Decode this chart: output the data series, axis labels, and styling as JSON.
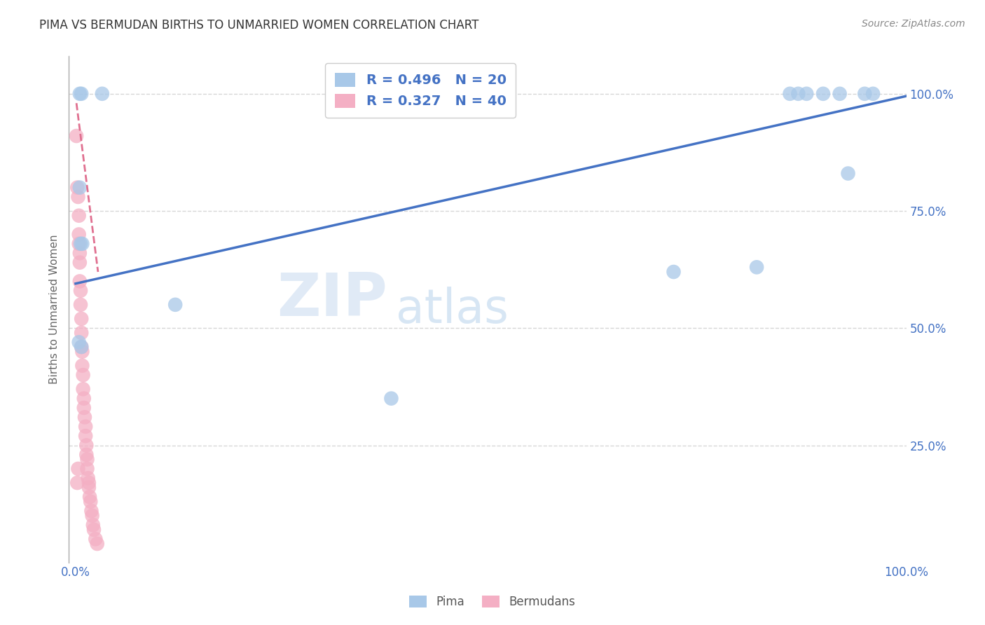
{
  "title": "PIMA VS BERMUDAN BIRTHS TO UNMARRIED WOMEN CORRELATION CHART",
  "source": "Source: ZipAtlas.com",
  "ylabel": "Births to Unmarried Women",
  "ytick_labels": [
    "25.0%",
    "50.0%",
    "75.0%",
    "100.0%"
  ],
  "ytick_values": [
    0.25,
    0.5,
    0.75,
    1.0
  ],
  "xtick_labels": [
    "0.0%",
    "100.0%"
  ],
  "xtick_values": [
    0.0,
    1.0
  ],
  "watermark_zip": "ZIP",
  "watermark_atlas": "atlas",
  "pima_R": 0.496,
  "pima_N": 20,
  "bermuda_R": 0.327,
  "bermuda_N": 40,
  "pima_color": "#a8c8e8",
  "bermuda_color": "#f4afc4",
  "pima_line_color": "#4472c4",
  "bermuda_line_color": "#e07090",
  "legend_text_color": "#4472c4",
  "title_color": "#333333",
  "axis_color": "#4472c4",
  "grid_color": "#cccccc",
  "background_color": "#ffffff",
  "pima_scatter_x": [
    0.005,
    0.007,
    0.032,
    0.005,
    0.006,
    0.008,
    0.004,
    0.007,
    0.12,
    0.38,
    0.72,
    0.82,
    0.86,
    0.88,
    0.9,
    0.93,
    0.95,
    0.87,
    0.92,
    0.96
  ],
  "pima_scatter_y": [
    1.0,
    1.0,
    1.0,
    0.8,
    0.68,
    0.68,
    0.47,
    0.46,
    0.55,
    0.35,
    0.62,
    0.63,
    1.0,
    1.0,
    1.0,
    0.83,
    1.0,
    1.0,
    1.0,
    1.0
  ],
  "bermuda_scatter_x": [
    0.001,
    0.002,
    0.002,
    0.003,
    0.003,
    0.004,
    0.004,
    0.004,
    0.005,
    0.005,
    0.005,
    0.006,
    0.006,
    0.007,
    0.007,
    0.007,
    0.008,
    0.008,
    0.009,
    0.009,
    0.01,
    0.01,
    0.011,
    0.012,
    0.012,
    0.013,
    0.013,
    0.014,
    0.014,
    0.015,
    0.016,
    0.016,
    0.017,
    0.018,
    0.019,
    0.02,
    0.021,
    0.022,
    0.024,
    0.026
  ],
  "bermuda_scatter_y": [
    0.91,
    0.17,
    0.8,
    0.78,
    0.2,
    0.74,
    0.7,
    0.68,
    0.66,
    0.64,
    0.6,
    0.58,
    0.55,
    0.52,
    0.49,
    0.46,
    0.45,
    0.42,
    0.4,
    0.37,
    0.35,
    0.33,
    0.31,
    0.29,
    0.27,
    0.25,
    0.23,
    0.22,
    0.2,
    0.18,
    0.17,
    0.16,
    0.14,
    0.13,
    0.11,
    0.1,
    0.08,
    0.07,
    0.05,
    0.04
  ],
  "pima_line_x0": 0.0,
  "pima_line_y0": 0.595,
  "pima_line_x1": 1.0,
  "pima_line_y1": 0.995,
  "bermuda_line_x0": 0.001,
  "bermuda_line_y0": 0.98,
  "bermuda_line_x1": 0.027,
  "bermuda_line_y1": 0.62
}
